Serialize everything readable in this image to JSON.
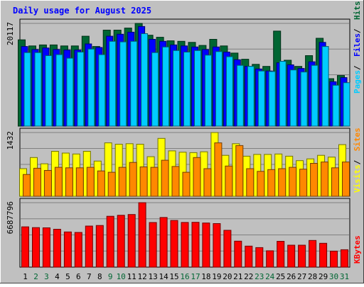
{
  "colors": {
    "background": "#c0c0c0",
    "plot_background": "#c0c0c0",
    "grid": "#808080",
    "title": "#0000ff",
    "hits": "#006633",
    "files": "#0000ff",
    "pages": "#00ccff",
    "visits": "#ffff00",
    "sites": "#ff8800",
    "kbytes": "#ff0000",
    "day_weekday": "#000000",
    "day_weekend": "#006633"
  },
  "chart_data": {
    "type": "bar",
    "title": "Daily usage for August 2025",
    "categories": [
      "1",
      "2",
      "3",
      "4",
      "5",
      "6",
      "7",
      "8",
      "9",
      "10",
      "11",
      "12",
      "13",
      "14",
      "15",
      "16",
      "17",
      "18",
      "19",
      "20",
      "21",
      "22",
      "23",
      "24",
      "25",
      "26",
      "27",
      "28",
      "29",
      "30",
      "31"
    ],
    "weekend_days": [
      "2",
      "3",
      "9",
      "10",
      "16",
      "17",
      "23",
      "24",
      "30",
      "31"
    ],
    "panels": [
      {
        "id": "hits_files_pages",
        "ymax_label": "20117",
        "ymax": 20117,
        "legend": [
          {
            "name": "Hits",
            "color": "#006633"
          },
          {
            "name": "Files",
            "color": "#0000ff"
          },
          {
            "name": "Pages",
            "color": "#00ccff"
          }
        ],
        "series": [
          {
            "name": "Hits",
            "values": [
              16900,
              15700,
              15900,
              15900,
              15700,
              15700,
              17600,
              15600,
              18800,
              18800,
              19200,
              20117,
              17800,
              17400,
              16700,
              16600,
              16400,
              15800,
              17000,
              15700,
              14300,
              13100,
              12100,
              11700,
              18600,
              12900,
              11700,
              13800,
              17200,
              9300,
              9900
            ]
          },
          {
            "name": "Files",
            "values": [
              15600,
              15000,
              15300,
              15000,
              14900,
              14900,
              16100,
              15400,
              17600,
              18000,
              18400,
              19500,
              17000,
              16600,
              15900,
              15700,
              15500,
              15000,
              15500,
              14500,
              13000,
              11700,
              11200,
              10800,
              12400,
              12000,
              11300,
              12600,
              16400,
              8700,
              9500
            ]
          },
          {
            "name": "Pages",
            "values": [
              14400,
              14400,
              13800,
              14000,
              13300,
              14500,
              15100,
              14000,
              16600,
              16500,
              16600,
              18100,
              14400,
              15500,
              14800,
              14500,
              14800,
              13900,
              14600,
              13600,
              11900,
              11700,
              10800,
              10700,
              12700,
              11000,
              10600,
              11900,
              15600,
              8000,
              8500
            ]
          }
        ]
      },
      {
        "id": "visits_sites",
        "ymax_label": "1432",
        "ymax": 1432,
        "legend": [
          {
            "name": "Sites",
            "color": "#ff8800"
          },
          {
            "name": "Visits",
            "color": "#ffff00"
          }
        ],
        "series": [
          {
            "name": "Visits",
            "values": [
              620,
              870,
              730,
              1010,
              970,
              950,
              1010,
              790,
              1200,
              1170,
              1180,
              1170,
              890,
              1300,
              1020,
              990,
              980,
              1000,
              1432,
              920,
              1180,
              900,
              940,
              940,
              950,
              900,
              800,
              840,
              920,
              880,
              1160
            ]
          },
          {
            "name": "Sites",
            "values": [
              490,
              630,
              580,
              650,
              640,
              640,
              650,
              570,
              540,
              650,
              760,
              660,
              650,
              810,
              670,
              540,
              870,
              620,
              1200,
              680,
              1140,
              620,
              560,
              600,
              620,
              650,
              610,
              740,
              770,
              640,
              770
            ]
          }
        ]
      },
      {
        "id": "kbytes",
        "ymax_label": "6687796",
        "ymax": 6687796,
        "legend": [
          {
            "name": "KBytes",
            "color": "#ff0000"
          }
        ],
        "series": [
          {
            "name": "KBytes",
            "values": [
              4180000,
              4100000,
              4080000,
              3930000,
              3650000,
              3600000,
              4260000,
              4320000,
              5280000,
              5380000,
              5460000,
              6687796,
              4630000,
              5150000,
              4840000,
              4640000,
              4650000,
              4580000,
              4520000,
              3820000,
              2700000,
              2180000,
              2030000,
              1700000,
              2680000,
              2280000,
              2280000,
              2770000,
              2480000,
              1660000,
              1810000
            ]
          }
        ]
      }
    ]
  }
}
